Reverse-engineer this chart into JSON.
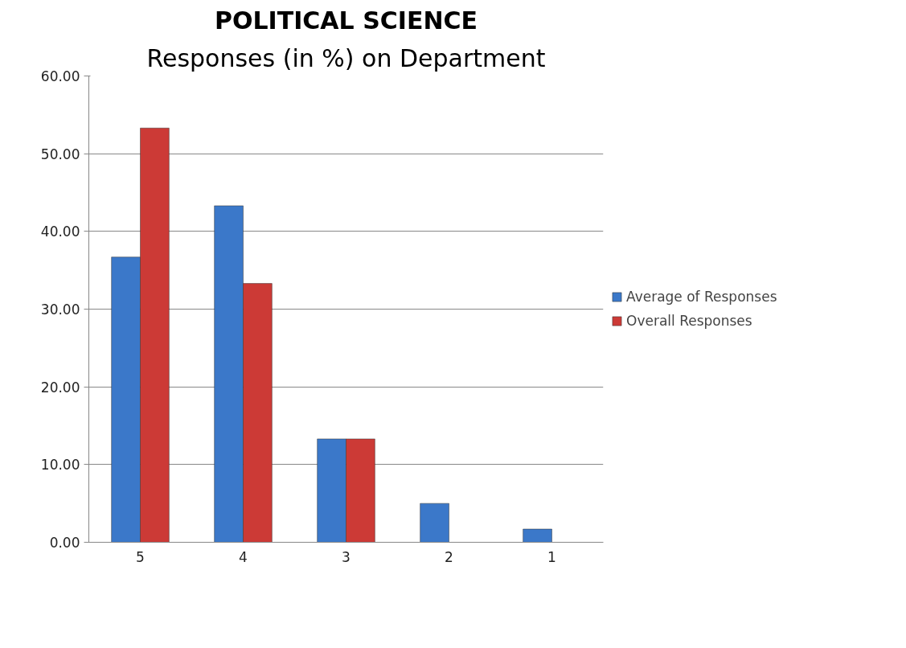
{
  "chart_data": {
    "type": "bar",
    "title": "POLITICAL SCIENCE",
    "subtitle": "Responses (in %) on Department",
    "categories": [
      "5",
      "4",
      "3",
      "2",
      "1"
    ],
    "series": [
      {
        "name": "Average of Responses",
        "color": "#3b78c9",
        "values": [
          36.7,
          43.3,
          13.3,
          5.0,
          1.7
        ]
      },
      {
        "name": "Overall Responses",
        "color": "#cc3a36",
        "values": [
          53.3,
          33.3,
          13.3,
          null,
          null
        ]
      }
    ],
    "ylim": [
      0,
      60
    ],
    "yticks": [
      {
        "value": 0,
        "label": "0.00"
      },
      {
        "value": 10,
        "label": "10.00"
      },
      {
        "value": 20,
        "label": "20.00"
      },
      {
        "value": 30,
        "label": "30.00"
      },
      {
        "value": 40,
        "label": "40.00"
      },
      {
        "value": 50,
        "label": "50.00"
      },
      {
        "value": 60,
        "label": "60.00"
      }
    ],
    "grid": "y",
    "legend": "right"
  }
}
